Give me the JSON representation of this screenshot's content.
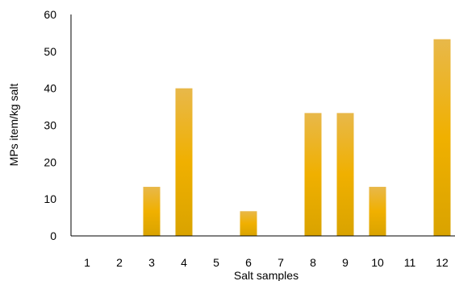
{
  "chart_data": {
    "type": "bar",
    "title": "",
    "xlabel": "Salt samples",
    "ylabel": "MPs item/kg salt",
    "categories": [
      "1",
      "2",
      "3",
      "4",
      "5",
      "6",
      "7",
      "8",
      "9",
      "10",
      "11",
      "12"
    ],
    "values": [
      0,
      0,
      13.3,
      40,
      0,
      6.7,
      0,
      33.3,
      33.3,
      13.3,
      0,
      53.3
    ],
    "ylim": [
      0,
      60
    ],
    "yticks": [
      0,
      10,
      20,
      30,
      40,
      50,
      60
    ],
    "grid": false,
    "legend": "none",
    "colors": {
      "bar_top": "#e8b84a",
      "bar_mid": "#f0b000",
      "bar_bottom": "#d9a300",
      "axis": "#000000"
    }
  }
}
